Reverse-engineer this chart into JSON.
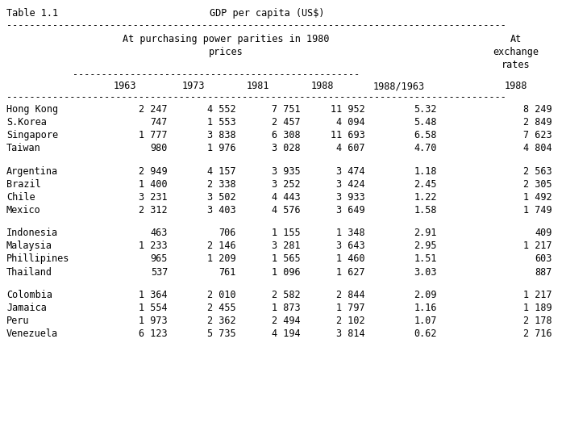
{
  "title_left": "Table 1.1",
  "title_center": "GDP per capita (US$)",
  "subheaders": [
    "1963",
    "1973",
    "1981",
    "1988",
    "1988/1963",
    "1988"
  ],
  "groups": [
    {
      "rows": [
        [
          "Hong Kong",
          "2 247",
          "4 552",
          "7 751",
          "11 952",
          "5.32",
          "8 249"
        ],
        [
          "S.Korea",
          "747",
          "1 553",
          "2 457",
          "4 094",
          "5.48",
          "2 849"
        ],
        [
          "Singapore",
          "1 777",
          "3 838",
          "6 308",
          "11 693",
          "6.58",
          "7 623"
        ],
        [
          "Taiwan",
          "980",
          "1 976",
          "3 028",
          "4 607",
          "4.70",
          "4 804"
        ]
      ]
    },
    {
      "rows": [
        [
          "Argentina",
          "2 949",
          "4 157",
          "3 935",
          "3 474",
          "1.18",
          "2 563"
        ],
        [
          "Brazil",
          "1 400",
          "2 338",
          "3 252",
          "3 424",
          "2.45",
          "2 305"
        ],
        [
          "Chile",
          "3 231",
          "3 502",
          "4 443",
          "3 933",
          "1.22",
          "1 492"
        ],
        [
          "Mexico",
          "2 312",
          "3 403",
          "4 576",
          "3 649",
          "1.58",
          "1 749"
        ]
      ]
    },
    {
      "rows": [
        [
          "Indonesia",
          "463",
          "706",
          "1 155",
          "1 348",
          "2.91",
          "409"
        ],
        [
          "Malaysia",
          "1 233",
          "2 146",
          "3 281",
          "3 643",
          "2.95",
          "1 217"
        ],
        [
          "Phillipines",
          "965",
          "1 209",
          "1 565",
          "1 460",
          "1.51",
          "603"
        ],
        [
          "Thailand",
          "537",
          "761",
          "1 096",
          "1 627",
          "3.03",
          "887"
        ]
      ]
    },
    {
      "rows": [
        [
          "Colombia",
          "1 364",
          "2 010",
          "2 582",
          "2 844",
          "2.09",
          "1 217"
        ],
        [
          "Jamaica",
          "1 554",
          "2 455",
          "1 873",
          "1 797",
          "1.16",
          "1 189"
        ],
        [
          "Peru",
          "1 973",
          "2 362",
          "2 494",
          "2 102",
          "1.07",
          "2 178"
        ],
        [
          "Venezuela",
          "6 123",
          "5 735",
          "4 194",
          "3 814",
          "0.62",
          "2 716"
        ]
      ]
    }
  ],
  "font_family": "monospace",
  "font_size": 8.5,
  "bg_color": "#ffffff",
  "text_color": "#000000",
  "dpi": 100,
  "fig_w": 7.02,
  "fig_h": 5.34
}
